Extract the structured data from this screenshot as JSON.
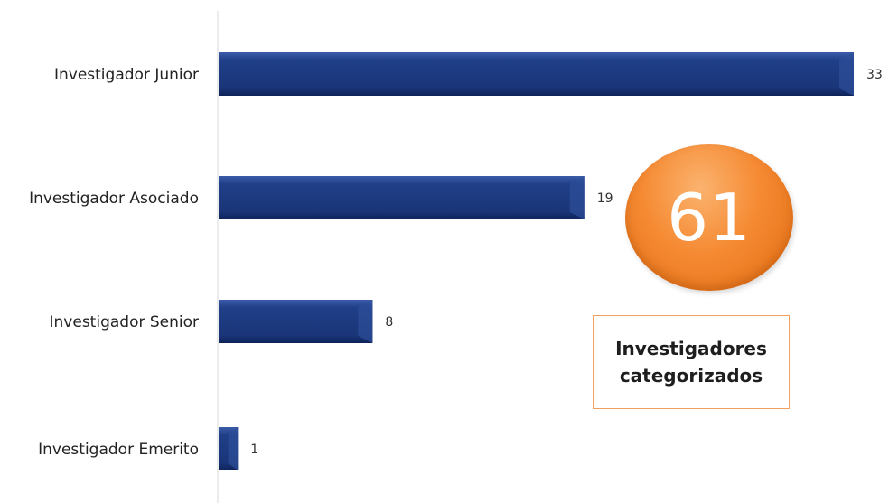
{
  "chart_data": {
    "type": "bar",
    "orientation": "horizontal",
    "categories": [
      "Investigador Junior",
      "Investigador Asociado",
      "Investigador Senior",
      "Investigador Emerito"
    ],
    "values": [
      33,
      19,
      8,
      1
    ],
    "xlim": [
      0,
      33
    ],
    "grid": false,
    "bar_color": "#1f3f86"
  },
  "summary": {
    "total": "61",
    "caption_line1": "Investigadores",
    "caption_line2": "categorizados",
    "circle_color": "#f58a33",
    "box_border_color": "#f0a060"
  }
}
